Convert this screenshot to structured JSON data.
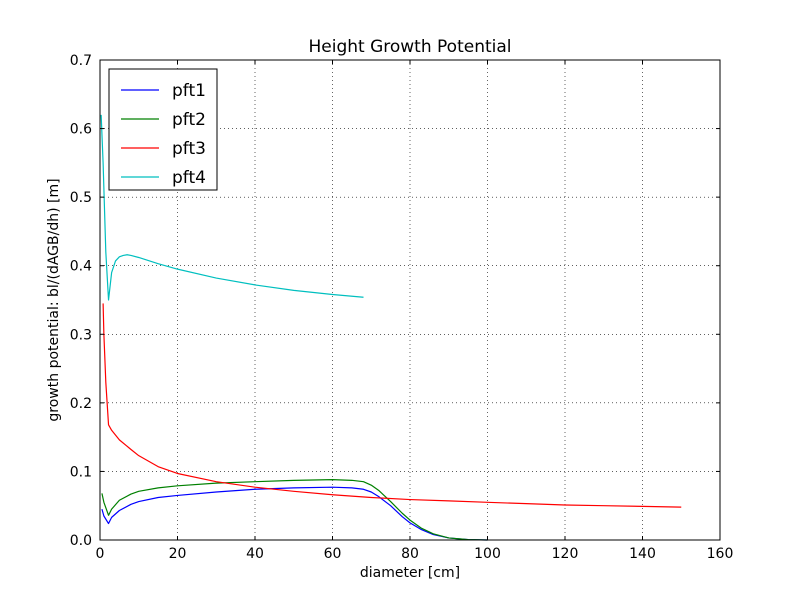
{
  "chart_data": {
    "type": "line",
    "title": "Height Growth Potential",
    "xlabel": "diameter [cm]",
    "ylabel": "growth potential: bl/(dAGB/dh) [m]",
    "xlim": [
      0,
      160
    ],
    "ylim": [
      0.0,
      0.7
    ],
    "xticks": [
      0,
      20,
      40,
      60,
      80,
      100,
      120,
      140,
      160
    ],
    "xtick_labels": [
      "0",
      "20",
      "40",
      "60",
      "80",
      "100",
      "120",
      "140",
      "160"
    ],
    "yticks": [
      0.0,
      0.1,
      0.2,
      0.3,
      0.4,
      0.5,
      0.6,
      0.7
    ],
    "ytick_labels": [
      "0.0",
      "0.1",
      "0.2",
      "0.3",
      "0.4",
      "0.5",
      "0.6",
      "0.7"
    ],
    "grid": true,
    "legend_position": "top-left",
    "series": [
      {
        "name": "pft1",
        "color": "#0000ff",
        "x": [
          0.5,
          1,
          2.2,
          3,
          5,
          8,
          10,
          15,
          20,
          30,
          40,
          50,
          60,
          65,
          68,
          70,
          72,
          75,
          78,
          80,
          83,
          86,
          90,
          95,
          100
        ],
        "y": [
          0.045,
          0.035,
          0.024,
          0.033,
          0.043,
          0.052,
          0.056,
          0.062,
          0.065,
          0.07,
          0.074,
          0.076,
          0.077,
          0.076,
          0.074,
          0.07,
          0.063,
          0.05,
          0.034,
          0.025,
          0.015,
          0.008,
          0.003,
          0.0005,
          0.0
        ]
      },
      {
        "name": "pft2",
        "color": "#008000",
        "x": [
          0.5,
          1,
          2.2,
          3,
          5,
          8,
          10,
          15,
          20,
          30,
          40,
          50,
          60,
          65,
          68,
          70,
          72,
          75,
          78,
          80,
          83,
          86,
          90,
          95,
          100
        ],
        "y": [
          0.068,
          0.055,
          0.036,
          0.045,
          0.058,
          0.067,
          0.071,
          0.076,
          0.079,
          0.083,
          0.085,
          0.087,
          0.088,
          0.087,
          0.085,
          0.08,
          0.072,
          0.056,
          0.039,
          0.029,
          0.017,
          0.009,
          0.003,
          0.0005,
          0.0
        ]
      },
      {
        "name": "pft3",
        "color": "#ff0000",
        "x": [
          0.8,
          1,
          1.5,
          2.2,
          3,
          5,
          8,
          10,
          15,
          20,
          30,
          40,
          50,
          60,
          70,
          80,
          90,
          100,
          110,
          120,
          130,
          140,
          150
        ],
        "y": [
          0.345,
          0.3,
          0.23,
          0.168,
          0.16,
          0.146,
          0.132,
          0.123,
          0.107,
          0.097,
          0.085,
          0.077,
          0.071,
          0.066,
          0.062,
          0.059,
          0.057,
          0.055,
          0.053,
          0.051,
          0.05,
          0.049,
          0.048
        ]
      },
      {
        "name": "pft4",
        "color": "#00bfbf",
        "x": [
          0.3,
          0.8,
          1.5,
          2.2,
          3,
          4,
          5,
          6,
          7,
          8,
          10,
          15,
          20,
          30,
          40,
          50,
          60,
          68
        ],
        "y": [
          0.62,
          0.55,
          0.42,
          0.35,
          0.39,
          0.407,
          0.413,
          0.415,
          0.416,
          0.415,
          0.412,
          0.403,
          0.395,
          0.382,
          0.372,
          0.364,
          0.358,
          0.354
        ]
      }
    ]
  }
}
